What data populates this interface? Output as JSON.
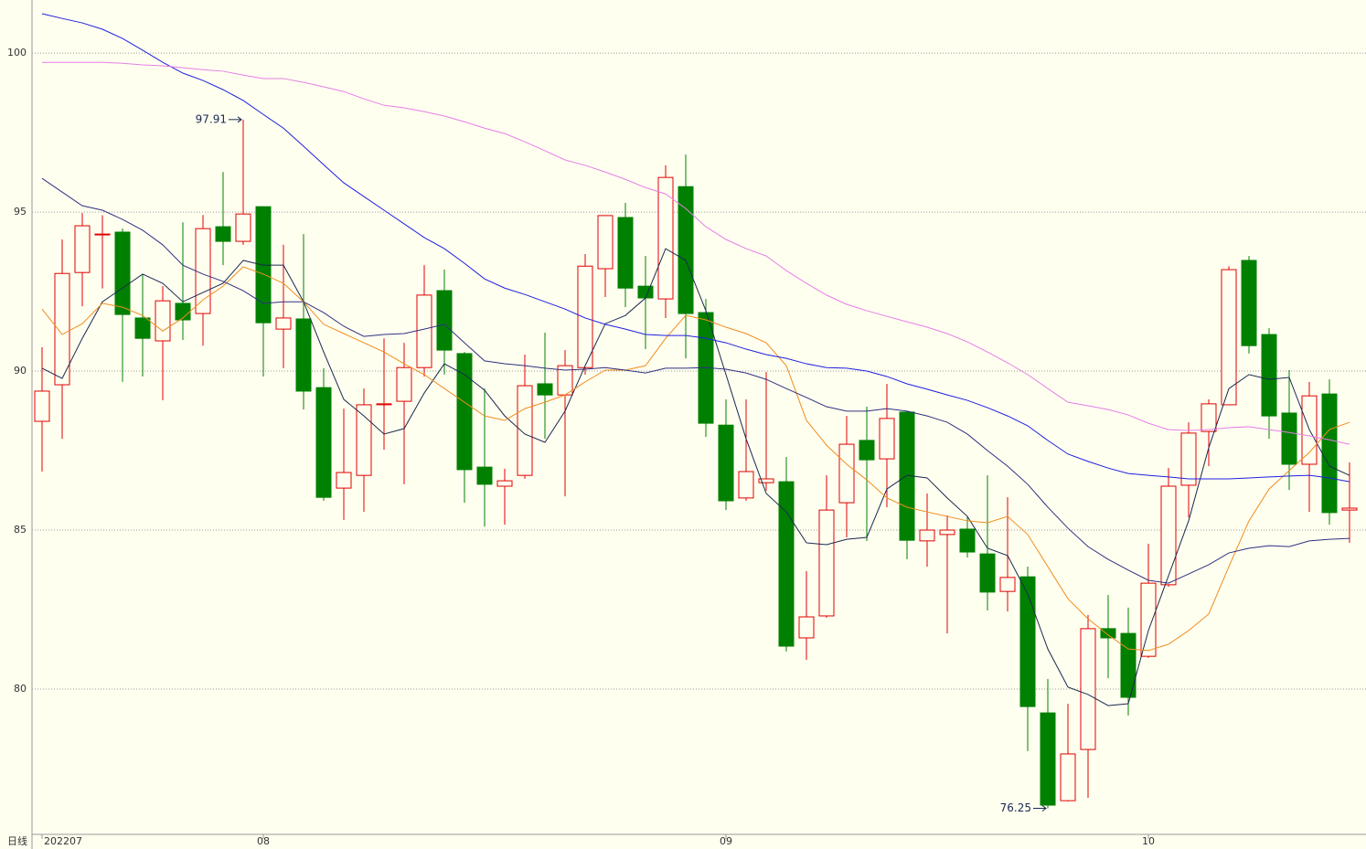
{
  "chart_data": {
    "type": "candlestick",
    "x_label": "日线",
    "categories": [
      "202207",
      null,
      null,
      null,
      null,
      null,
      null,
      null,
      null,
      null,
      null,
      "08",
      null,
      null,
      null,
      null,
      null,
      null,
      null,
      null,
      null,
      null,
      null,
      null,
      null,
      null,
      null,
      null,
      null,
      null,
      null,
      null,
      null,
      null,
      "09",
      null,
      null,
      null,
      null,
      null,
      null,
      null,
      null,
      null,
      null,
      null,
      null,
      null,
      null,
      null,
      null,
      null,
      null,
      null,
      null,
      "10",
      null,
      null,
      null,
      null,
      null,
      null,
      null,
      null,
      null,
      null
    ],
    "open": [
      88.42,
      89.57,
      93.1,
      94.31,
      94.37,
      91.67,
      90.95,
      92.13,
      91.81,
      94.54,
      94.08,
      95.17,
      91.32,
      91.64,
      89.48,
      86.32,
      86.72,
      88.97,
      89.05,
      90.11,
      92.53,
      90.55,
      86.98,
      86.38,
      86.72,
      89.6,
      89.25,
      90.11,
      93.22,
      94.83,
      92.67,
      92.27,
      95.8,
      91.84,
      88.3,
      86.01,
      86.49,
      86.52,
      81.61,
      82.3,
      85.86,
      87.82,
      87.24,
      88.71,
      84.66,
      84.86,
      85.03,
      84.25,
      83.07,
      83.53,
      79.25,
      76.49,
      78.1,
      81.9,
      81.75,
      81.03,
      83.28,
      86.41,
      88.1,
      88.94,
      93.48,
      91.15,
      88.68,
      87.07,
      89.28,
      85.63
    ],
    "high": [
      90.75,
      94.14,
      94.97,
      94.9,
      94.48,
      93.05,
      92.67,
      94.68,
      94.91,
      96.26,
      97.91,
      95.17,
      93.97,
      94.31,
      90.09,
      88.82,
      89.45,
      91.03,
      90.89,
      93.33,
      93.19,
      90.6,
      89.45,
      86.93,
      90.52,
      91.21,
      90.66,
      93.68,
      94.89,
      95.29,
      93.62,
      96.47,
      96.81,
      92.27,
      89.11,
      89.11,
      89.97,
      87.3,
      83.71,
      86.72,
      88.59,
      88.88,
      89.6,
      88.74,
      86.15,
      85.46,
      85.43,
      86.72,
      86.03,
      83.85,
      80.32,
      79.54,
      82.33,
      82.96,
      82.56,
      84.57,
      86.95,
      88.39,
      89.11,
      93.3,
      93.62,
      91.35,
      90.03,
      89.66,
      89.74,
      87.13
    ],
    "low": [
      86.84,
      87.87,
      92.04,
      92.6,
      89.66,
      89.83,
      89.08,
      90.98,
      90.8,
      93.33,
      93.97,
      89.83,
      90.09,
      88.79,
      85.92,
      85.32,
      85.57,
      87.53,
      86.44,
      89.83,
      89.89,
      85.86,
      85.11,
      85.17,
      86.61,
      87.87,
      86.06,
      89.89,
      92.33,
      92.01,
      90.69,
      91.67,
      90.4,
      87.93,
      85.63,
      85.92,
      86.24,
      81.18,
      80.92,
      82.24,
      84.77,
      84.66,
      85.72,
      84.08,
      83.85,
      81.75,
      84.14,
      82.47,
      82.44,
      78.05,
      76.25,
      76.47,
      76.58,
      80.34,
      79.17,
      80.98,
      83.22,
      85.4,
      87.01,
      88.94,
      90.55,
      87.87,
      86.26,
      85.57,
      85.17,
      84.6
    ],
    "close": [
      89.37,
      93.07,
      94.57,
      94.31,
      91.78,
      91.03,
      92.21,
      91.61,
      94.48,
      94.08,
      94.94,
      91.52,
      91.67,
      89.37,
      86.03,
      86.81,
      88.94,
      88.97,
      90.11,
      92.39,
      90.66,
      86.9,
      86.44,
      86.55,
      89.54,
      89.25,
      90.17,
      93.3,
      94.89,
      92.61,
      92.3,
      96.09,
      91.81,
      88.36,
      85.92,
      86.84,
      86.61,
      81.35,
      82.27,
      85.63,
      87.7,
      87.21,
      88.51,
      84.68,
      85.0,
      85.0,
      84.31,
      83.05,
      83.51,
      79.45,
      76.35,
      77.96,
      81.9,
      81.61,
      79.74,
      83.33,
      86.38,
      88.05,
      88.97,
      93.19,
      90.8,
      88.59,
      87.07,
      89.22,
      85.55,
      85.69
    ],
    "up_color": "#e00000",
    "down_color": "#008000",
    "lines": [
      {
        "color": "#1a2850",
        "values": [
          90.09,
          89.77,
          91.03,
          92.18,
          92.61,
          93.05,
          92.76,
          92.18,
          92.47,
          92.76,
          93.48,
          93.33,
          93.33,
          92.18,
          90.6,
          89.11,
          88.59,
          88.02,
          88.19,
          89.31,
          90.23,
          89.89,
          89.4,
          88.59,
          88.02,
          87.76,
          88.74,
          90.17,
          91.49,
          91.75,
          92.3,
          93.85,
          93.48,
          91.9,
          89.89,
          87.87,
          86.15,
          85.57,
          84.6,
          84.54,
          84.71,
          84.77,
          86.29,
          86.72,
          86.64,
          86.01,
          85.43,
          84.43,
          84.2,
          82.99,
          81.26,
          80.06,
          79.83,
          79.48,
          79.54,
          81.84,
          83.56,
          85.29,
          87.59,
          89.45,
          89.89,
          89.74,
          89.8,
          88.16,
          87.01,
          86.72
        ]
      },
      {
        "color": "#f08c1c",
        "values": [
          91.95,
          91.15,
          91.49,
          92.13,
          92.01,
          91.75,
          91.26,
          91.67,
          92.24,
          92.67,
          93.28,
          93.05,
          92.76,
          92.18,
          91.47,
          91.18,
          90.89,
          90.6,
          90.23,
          89.89,
          89.45,
          89.02,
          88.59,
          88.45,
          88.82,
          89.02,
          89.25,
          89.66,
          90.03,
          90.03,
          90.17,
          91.03,
          91.75,
          91.61,
          91.38,
          91.18,
          90.89,
          90.17,
          88.45,
          87.67,
          87.07,
          86.58,
          86.01,
          85.72,
          85.57,
          85.43,
          85.29,
          85.23,
          85.43,
          84.86,
          83.85,
          82.84,
          82.21,
          81.7,
          81.26,
          81.21,
          81.41,
          81.84,
          82.36,
          83.85,
          85.29,
          86.29,
          86.87,
          87.44,
          88.16,
          88.39
        ]
      },
      {
        "color": "#303080",
        "values": [
          96.06,
          95.63,
          95.2,
          95.06,
          94.77,
          94.43,
          93.97,
          93.33,
          93.05,
          92.82,
          92.53,
          92.13,
          92.18,
          92.18,
          91.84,
          91.41,
          91.09,
          91.15,
          91.18,
          91.32,
          91.47,
          90.89,
          90.32,
          90.23,
          90.17,
          90.09,
          90.03,
          90.06,
          90.11,
          90.03,
          89.94,
          90.09,
          90.09,
          90.11,
          90.06,
          89.94,
          89.74,
          89.45,
          89.17,
          88.88,
          88.74,
          88.74,
          88.82,
          88.74,
          88.59,
          88.39,
          88.02,
          87.5,
          87.01,
          86.44,
          85.72,
          85.06,
          84.48,
          84.08,
          83.74,
          83.42,
          83.33,
          83.62,
          83.91,
          84.28,
          84.43,
          84.51,
          84.48,
          84.66,
          84.71,
          84.74
        ]
      },
      {
        "color": "#1f1fe0",
        "values": [
          101.24,
          101.09,
          100.95,
          100.75,
          100.46,
          100.09,
          99.71,
          99.37,
          99.14,
          98.85,
          98.51,
          98.07,
          97.64,
          97.07,
          96.49,
          95.92,
          95.49,
          95.06,
          94.63,
          94.2,
          93.85,
          93.39,
          92.9,
          92.61,
          92.41,
          92.18,
          91.95,
          91.67,
          91.47,
          91.32,
          91.15,
          91.12,
          91.12,
          91.03,
          90.89,
          90.69,
          90.52,
          90.4,
          90.23,
          90.11,
          90.09,
          90.0,
          89.83,
          89.6,
          89.43,
          89.25,
          89.08,
          88.85,
          88.59,
          88.28,
          87.82,
          87.39,
          87.16,
          86.95,
          86.78,
          86.72,
          86.67,
          86.61,
          86.61,
          86.61,
          86.64,
          86.67,
          86.7,
          86.72,
          86.64,
          86.52
        ]
      },
      {
        "color": "#e67ee6",
        "values": [
          99.71,
          99.71,
          99.71,
          99.71,
          99.68,
          99.63,
          99.6,
          99.54,
          99.48,
          99.43,
          99.31,
          99.2,
          99.2,
          99.08,
          98.94,
          98.79,
          98.56,
          98.36,
          98.28,
          98.16,
          98.02,
          97.84,
          97.64,
          97.47,
          97.21,
          96.93,
          96.64,
          96.47,
          96.26,
          96.03,
          95.77,
          95.57,
          95.11,
          94.54,
          94.14,
          93.85,
          93.62,
          93.16,
          92.76,
          92.39,
          92.1,
          91.9,
          91.72,
          91.55,
          91.38,
          91.18,
          90.92,
          90.6,
          90.26,
          89.89,
          89.45,
          89.02,
          88.91,
          88.79,
          88.62,
          88.36,
          88.16,
          88.13,
          88.16,
          88.22,
          88.25,
          88.16,
          88.07,
          87.96,
          87.84,
          87.7
        ]
      }
    ],
    "ylim": [
      75.43,
      101.67
    ],
    "yticks": [
      80,
      85,
      90,
      95,
      100
    ],
    "grid": true
  }
}
